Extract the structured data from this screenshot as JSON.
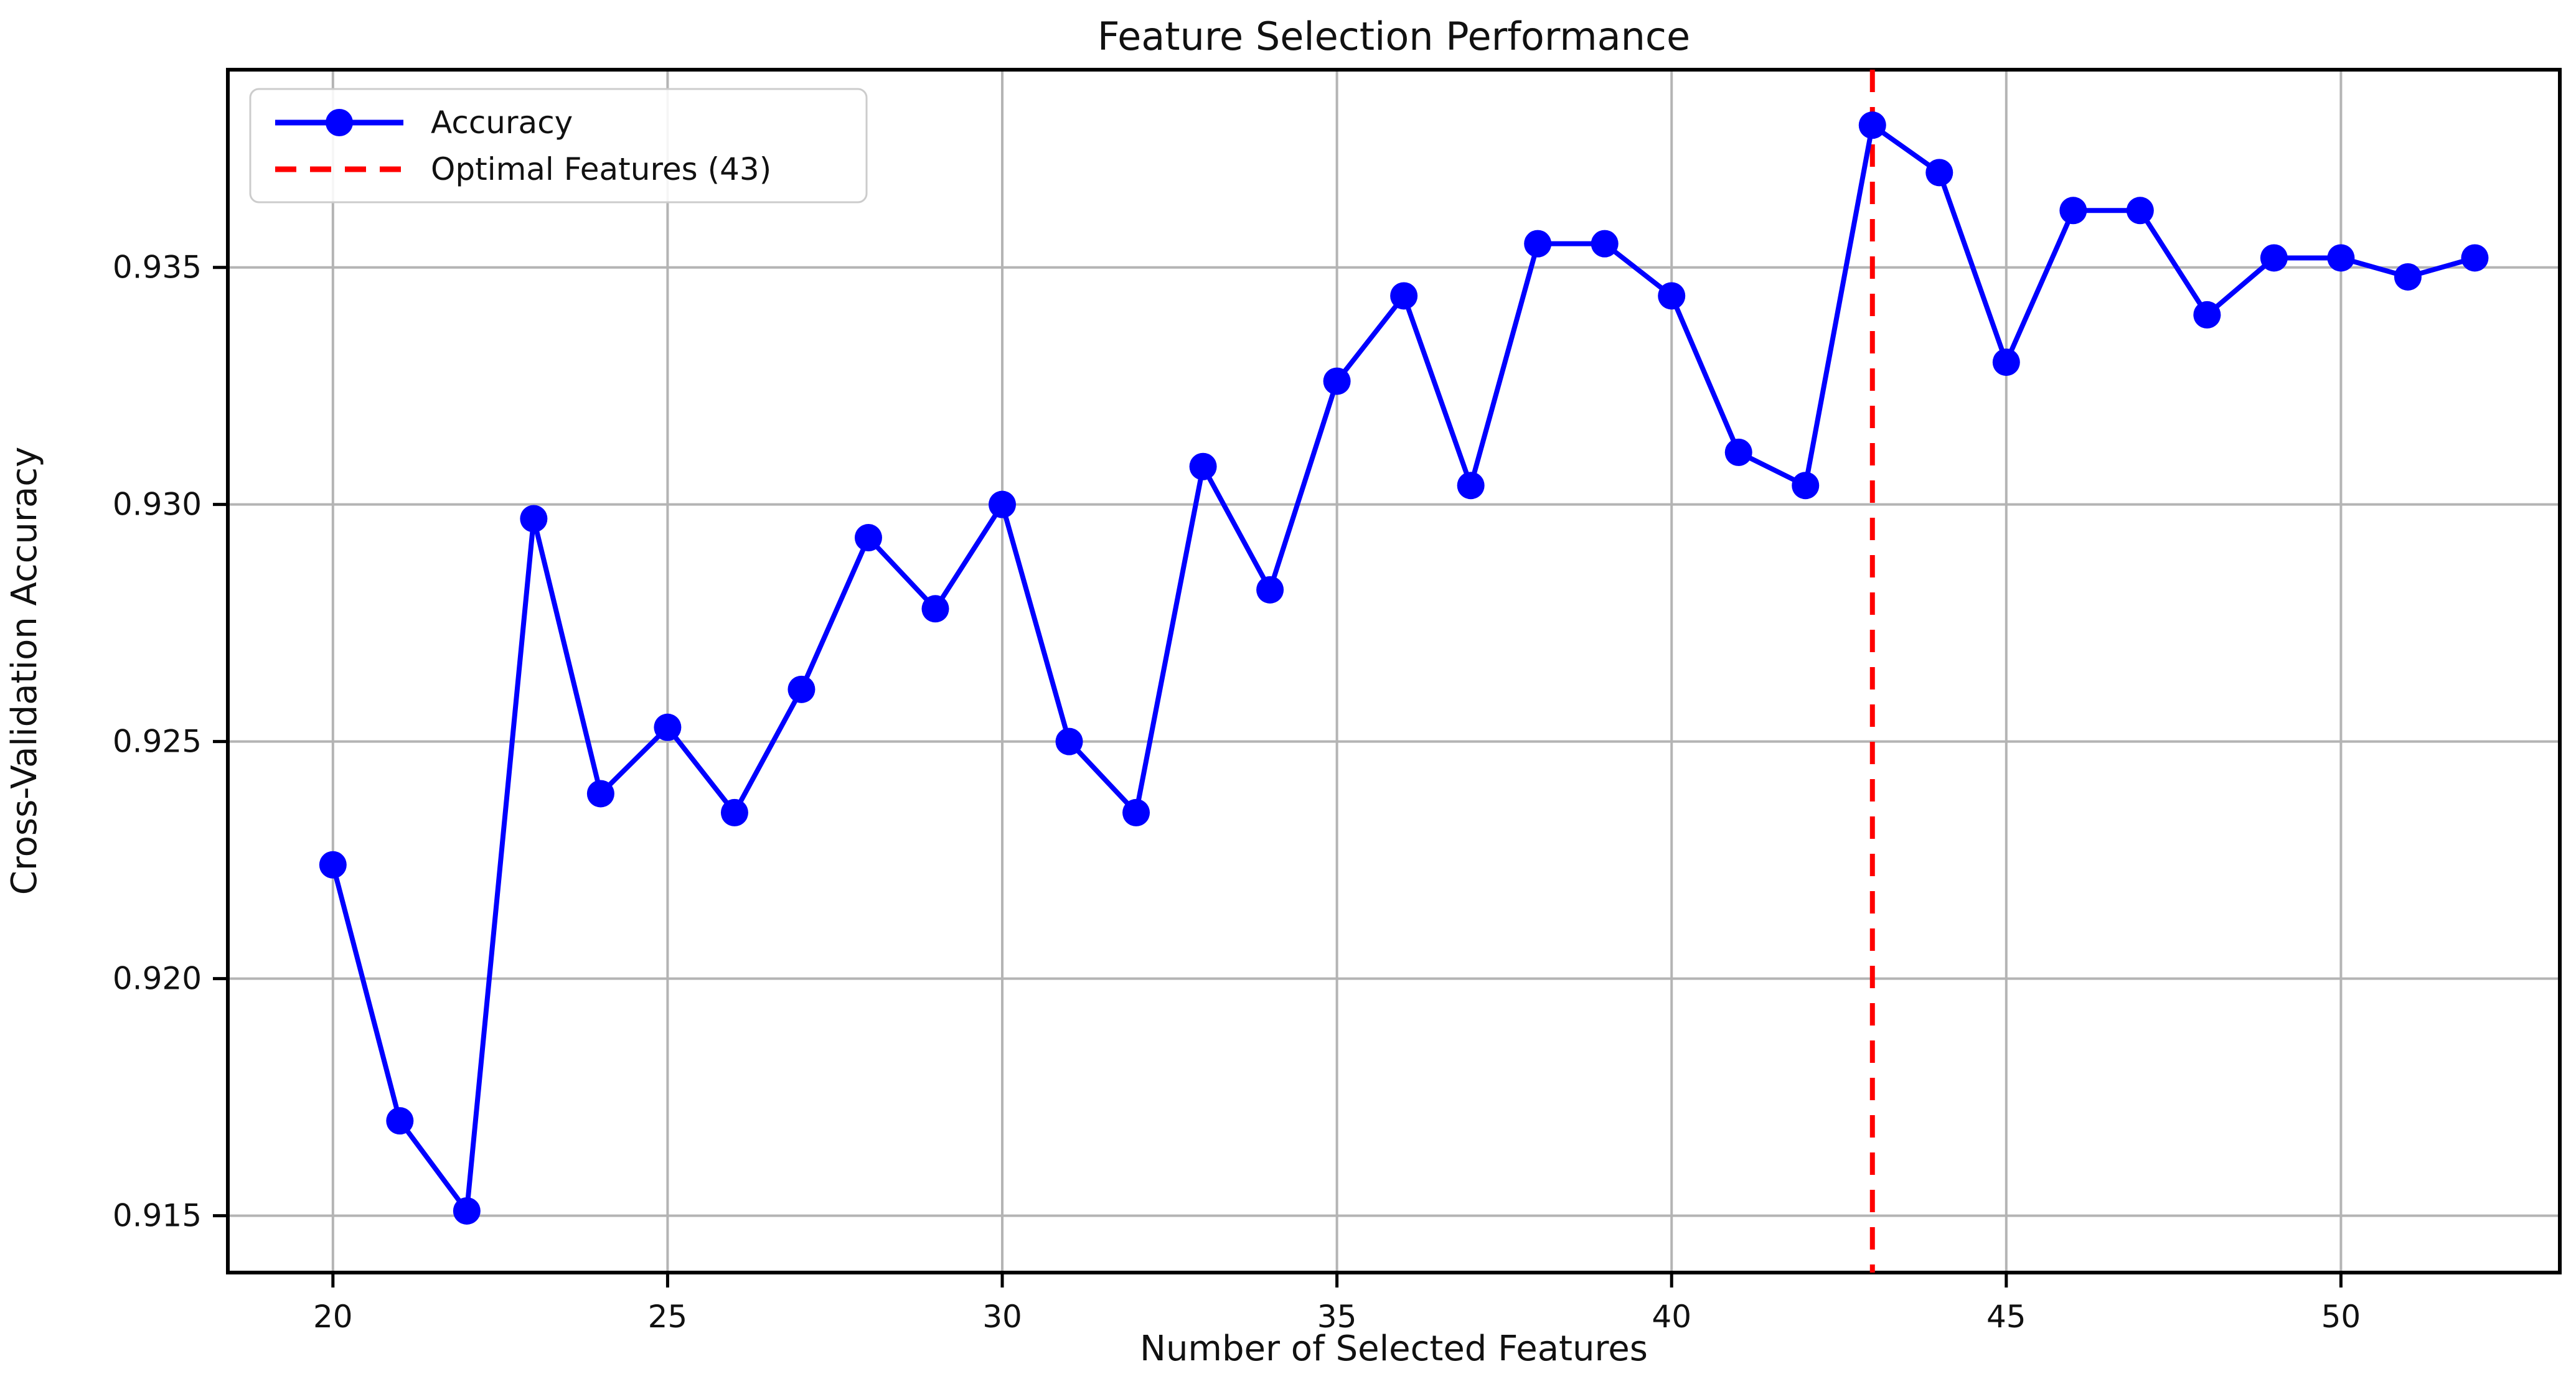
{
  "title": "Feature Selection Performance",
  "axes": {
    "xlabel": "Number of Selected Features",
    "ylabel": "Cross-Validation Accuracy"
  },
  "legend": {
    "position": "upper left",
    "entries": [
      {
        "label": "Accuracy",
        "style": "solid-line-with-marker",
        "color": "#0000ff"
      },
      {
        "label": "Optimal Features (43)",
        "style": "dashed-line",
        "color": "#ff0000"
      }
    ]
  },
  "colors": {
    "accuracy_line": "#0000ff",
    "optimal_line": "#ff0000",
    "grid": "#b4b4b4",
    "spine": "#000000",
    "background": "#ffffff"
  },
  "chart_data": {
    "type": "line",
    "title": "Feature Selection Performance",
    "xlabel": "Number of Selected Features",
    "ylabel": "Cross-Validation Accuracy",
    "grid": true,
    "legend_position": "upper left",
    "xlim": [
      18.43,
      53.27
    ],
    "ylim": [
      0.9138,
      0.93917
    ],
    "xticks": [
      20,
      25,
      30,
      35,
      40,
      45,
      50
    ],
    "xtick_labels": [
      "20",
      "25",
      "30",
      "35",
      "40",
      "45",
      "50"
    ],
    "yticks": [
      0.915,
      0.92,
      0.925,
      0.93,
      0.935
    ],
    "ytick_labels": [
      "0.915",
      "0.920",
      "0.925",
      "0.930",
      "0.935"
    ],
    "series": [
      {
        "name": "Accuracy",
        "color": "#0000ff",
        "marker": "circle",
        "x": [
          20,
          21,
          22,
          23,
          24,
          25,
          26,
          27,
          28,
          29,
          30,
          31,
          32,
          33,
          34,
          35,
          36,
          37,
          38,
          39,
          40,
          41,
          42,
          43,
          44,
          45,
          46,
          47,
          48,
          49,
          50,
          51,
          52
        ],
        "y": [
          0.9224,
          0.917,
          0.9151,
          0.9297,
          0.9239,
          0.9253,
          0.9235,
          0.9261,
          0.9293,
          0.9278,
          0.93,
          0.925,
          0.9235,
          0.9308,
          0.9282,
          0.9326,
          0.9344,
          0.9304,
          0.9355,
          0.9355,
          0.9344,
          0.9311,
          0.9304,
          0.938,
          0.937,
          0.933,
          0.9362,
          0.9362,
          0.934,
          0.9352,
          0.9352,
          0.9348,
          0.9352
        ]
      }
    ],
    "vline": {
      "x": 43,
      "label": "Optimal Features (43)",
      "color": "#ff0000",
      "style": "dashed"
    },
    "optimal_features": 43
  }
}
